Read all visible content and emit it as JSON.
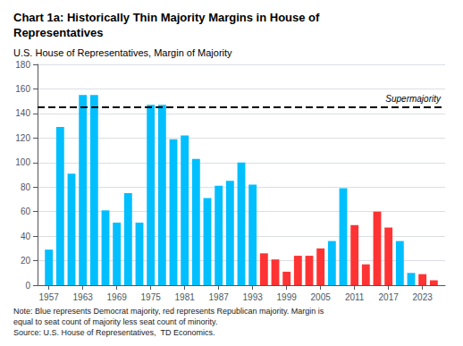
{
  "chart_data": {
    "type": "bar",
    "title": "Chart 1a: Historically Thin Majority Margins in House of\nRepresentatives",
    "subtitle": "U.S. House of Representatives, Margin of Majority",
    "note": "Note: Blue represents Democrat majority, red represents Republican majority. Margin is\nequal to seat count of majority less seat count of minority.\nSource: U.S. House of Representatives,  TD Economics.",
    "x": [
      1957,
      1959,
      1961,
      1963,
      1965,
      1967,
      1969,
      1971,
      1973,
      1975,
      1977,
      1979,
      1981,
      1983,
      1985,
      1987,
      1989,
      1991,
      1993,
      1995,
      1997,
      1999,
      2001,
      2003,
      2005,
      2007,
      2009,
      2011,
      2013,
      2015,
      2017,
      2019,
      2021,
      2023,
      2025
    ],
    "values": [
      29,
      129,
      91,
      155,
      155,
      61,
      51,
      75,
      51,
      147,
      147,
      119,
      122,
      103,
      71,
      81,
      85,
      100,
      82,
      26,
      21,
      11,
      24,
      24,
      30,
      36,
      79,
      49,
      17,
      60,
      47,
      36,
      10,
      9,
      4
    ],
    "colors": [
      "#00BFFF",
      "#00BFFF",
      "#00BFFF",
      "#00BFFF",
      "#00BFFF",
      "#00BFFF",
      "#00BFFF",
      "#00BFFF",
      "#00BFFF",
      "#00BFFF",
      "#00BFFF",
      "#00BFFF",
      "#00BFFF",
      "#00BFFF",
      "#00BFFF",
      "#00BFFF",
      "#00BFFF",
      "#00BFFF",
      "#00BFFF",
      "#FF3333",
      "#FF3333",
      "#FF3333",
      "#FF3333",
      "#FF3333",
      "#FF3333",
      "#00BFFF",
      "#00BFFF",
      "#FF3333",
      "#FF3333",
      "#FF3333",
      "#FF3333",
      "#00BFFF",
      "#00BFFF",
      "#FF3333",
      "#FF3333"
    ],
    "xlim": [
      1955,
      2027
    ],
    "xticks": [
      1957,
      1963,
      1969,
      1975,
      1981,
      1987,
      1993,
      1999,
      2005,
      2011,
      2017,
      2023
    ],
    "ylim": [
      0,
      180
    ],
    "yticks": [
      0,
      20,
      40,
      60,
      80,
      100,
      120,
      140,
      160,
      180
    ],
    "grid": true,
    "hline": {
      "value": 145,
      "label": "Supermajority",
      "line_style": "dashed"
    }
  }
}
